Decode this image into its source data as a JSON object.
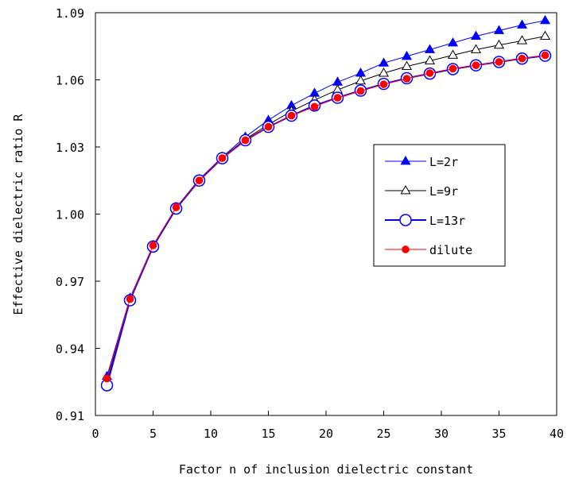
{
  "chart_data": {
    "type": "line",
    "title": "",
    "xlabel": "Factor n of inclusion dielectric constant",
    "ylabel": "Effective dielectric ratio R",
    "xlim": [
      0,
      40
    ],
    "ylim": [
      0.91,
      1.09
    ],
    "xticks": [
      0,
      5,
      10,
      15,
      20,
      25,
      30,
      35,
      40
    ],
    "yticks": [
      0.91,
      0.94,
      0.97,
      1.0,
      1.03,
      1.06,
      1.09
    ],
    "ytick_labels": [
      "0.91",
      "0.94",
      "0.97",
      "1.00",
      "1.03",
      "1.06",
      "1.09"
    ],
    "grid": false,
    "legend_position": "right-middle",
    "x": [
      1,
      3,
      5,
      7,
      9,
      11,
      13,
      15,
      17,
      19,
      21,
      23,
      25,
      27,
      29,
      31,
      33,
      35,
      37,
      39
    ],
    "series": [
      {
        "name": "L=2r",
        "color": "#0000ff",
        "marker": "filled-triangle",
        "values": [
          0.9275,
          0.9625,
          0.986,
          1.003,
          1.0155,
          1.0255,
          1.0345,
          1.042,
          1.0485,
          1.054,
          1.059,
          1.063,
          1.0675,
          1.0705,
          1.0735,
          1.0765,
          1.0795,
          1.082,
          1.0845,
          1.0865
        ]
      },
      {
        "name": "L=9r",
        "color": "#000000",
        "marker": "open-triangle",
        "values": [
          0.925,
          0.962,
          0.9855,
          1.0025,
          1.015,
          1.0252,
          1.0335,
          1.04,
          1.046,
          1.051,
          1.0555,
          1.0595,
          1.063,
          1.066,
          1.0685,
          1.071,
          1.0735,
          1.0755,
          1.0775,
          1.0795
        ]
      },
      {
        "name": "L=13r",
        "color": "#0000ff",
        "marker": "open-circle",
        "values": [
          0.9235,
          0.9615,
          0.9855,
          1.0025,
          1.015,
          1.025,
          1.033,
          1.039,
          1.044,
          1.0485,
          1.052,
          1.0552,
          1.0582,
          1.0607,
          1.0628,
          1.0648,
          1.0665,
          1.068,
          1.0695,
          1.0708
        ]
      },
      {
        "name": "dilute",
        "color": "#ff0000",
        "marker": "filled-circle",
        "values": [
          0.9265,
          0.962,
          0.986,
          1.003,
          1.015,
          1.025,
          1.033,
          1.039,
          1.044,
          1.048,
          1.052,
          1.055,
          1.058,
          1.0605,
          1.063,
          1.065,
          1.0665,
          1.068,
          1.0695,
          1.071
        ]
      }
    ]
  }
}
